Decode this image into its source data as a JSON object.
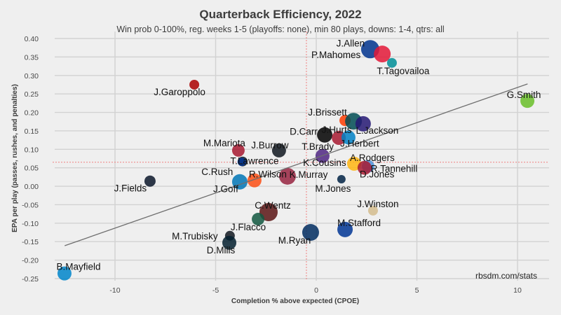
{
  "chart_data": {
    "type": "scatter",
    "title": "Quarterback Efficiency, 2022",
    "subtitle": "Win prob 0-100%, reg. weeks 1-5 (playoffs: none), min 80 plays, downs: 1-4, qtrs: all",
    "xlabel": "Completion % above expected (CPOE)",
    "ylabel": "EPA per play (passes, rushes, and penalties)",
    "caption": "rbsdm.com/stats",
    "xlim": [
      -13.1,
      11.6
    ],
    "ylim": [
      -0.25,
      0.4
    ],
    "x_ticks": [
      -10,
      -5,
      0,
      5,
      10
    ],
    "y_ticks": [
      0.4,
      0.35,
      0.3,
      0.25,
      0.2,
      0.15,
      0.1,
      0.05,
      0.0,
      -0.05,
      -0.1,
      -0.15,
      -0.2,
      -0.25
    ],
    "x_tick_labels": [
      "-10",
      "-5",
      "0",
      "5",
      "10"
    ],
    "y_tick_labels": [
      "0.40",
      "0.35",
      "0.30",
      "0.25",
      "0.20",
      "0.15",
      "0.10",
      "0.05",
      "0.00",
      "-0.05",
      "-0.10",
      "-0.15",
      "-0.20",
      "-0.25"
    ],
    "grid": true,
    "mean_lines": {
      "x": -0.49,
      "y": 0.065,
      "color": "#f08080"
    },
    "trend_line": {
      "x": [
        -12.5,
        10.5
      ],
      "y": [
        -0.161,
        0.277
      ],
      "color": "#6e6e6e"
    },
    "points": [
      {
        "name": "J.Allen",
        "cpoe": 2.68,
        "epa": 0.371,
        "plays": 13,
        "color": "#00338D"
      },
      {
        "name": "P.Mahomes",
        "cpoe": 3.28,
        "epa": 0.358,
        "plays": 12,
        "color": "#E31837"
      },
      {
        "name": "T.Tagovailoa",
        "cpoe": 3.76,
        "epa": 0.334,
        "plays": 7,
        "color": "#008E97"
      },
      {
        "name": "J.Garoppolo",
        "cpoe": -6.06,
        "epa": 0.275,
        "plays": 7,
        "color": "#AA0000"
      },
      {
        "name": "G.Smith",
        "cpoe": 10.49,
        "epa": 0.231,
        "plays": 10,
        "color": "#69BE28"
      },
      {
        "name": "J.Brissett",
        "cpoe": 1.43,
        "epa": 0.178,
        "plays": 8,
        "color": "#FF3C00"
      },
      {
        "name": "J.Hurts",
        "cpoe": 1.85,
        "epa": 0.176,
        "plays": 12,
        "color": "#004C54"
      },
      {
        "name": "L.Jackson",
        "cpoe": 2.33,
        "epa": 0.169,
        "plays": 11,
        "color": "#241773"
      },
      {
        "name": "D.Carr",
        "cpoe": 0.42,
        "epa": 0.139,
        "plays": 11,
        "color": "#000000"
      },
      {
        "name": "T.Brady",
        "cpoe": 1.12,
        "epa": 0.131,
        "plays": 10,
        "color": "#A71930"
      },
      {
        "name": "J.Herbert",
        "cpoe": 1.6,
        "epa": 0.132,
        "plays": 10,
        "color": "#0080C6"
      },
      {
        "name": "J.Burrow",
        "cpoe": -1.85,
        "epa": 0.097,
        "plays": 10,
        "color": "#101820"
      },
      {
        "name": "M.Mariota",
        "cpoe": -3.87,
        "epa": 0.097,
        "plays": 9,
        "color": "#A71930"
      },
      {
        "name": "T.Lawrence",
        "cpoe": -3.66,
        "epa": 0.067,
        "plays": 7,
        "color": "#101820"
      },
      {
        "name": "C.Rush",
        "cpoe": -3.7,
        "epa": 0.066,
        "plays": 6,
        "color": "#003594"
      },
      {
        "name": "K.Cousins",
        "cpoe": 0.31,
        "epa": 0.082,
        "plays": 10,
        "color": "#4F2683"
      },
      {
        "name": "A.Rodgers",
        "cpoe": 1.88,
        "epa": 0.061,
        "plays": 10,
        "color": "#FFB612"
      },
      {
        "name": "R.Tannehill",
        "cpoe": 2.58,
        "epa": 0.054,
        "plays": 9,
        "color": "#4B92DB"
      },
      {
        "name": "D.Jones",
        "cpoe": 2.4,
        "epa": 0.05,
        "plays": 10,
        "color": "#A71930"
      },
      {
        "name": "K.Murray",
        "cpoe": -1.43,
        "epa": 0.027,
        "plays": 12,
        "color": "#97233F"
      },
      {
        "name": "M.Jones",
        "cpoe": 1.25,
        "epa": 0.019,
        "plays": 6,
        "color": "#002244"
      },
      {
        "name": "R.Wilson",
        "cpoe": -3.07,
        "epa": 0.016,
        "plays": 10,
        "color": "#FB4F14"
      },
      {
        "name": "J.Goff",
        "cpoe": -3.8,
        "epa": 0.012,
        "plays": 11,
        "color": "#0076B6"
      },
      {
        "name": "J.Fields",
        "cpoe": -8.26,
        "epa": 0.014,
        "plays": 8,
        "color": "#0B162A"
      },
      {
        "name": "J.Winston",
        "cpoe": 2.82,
        "epa": -0.066,
        "plays": 7,
        "color": "#D3BC8D"
      },
      {
        "name": "C.Wentz",
        "cpoe": -2.37,
        "epa": -0.07,
        "plays": 13,
        "color": "#5A1414"
      },
      {
        "name": "J.Flacco",
        "cpoe": -2.89,
        "epa": -0.089,
        "plays": 9,
        "color": "#125740"
      },
      {
        "name": "M.Stafford",
        "cpoe": 1.43,
        "epa": -0.117,
        "plays": 11,
        "color": "#003594"
      },
      {
        "name": "M.Ryan",
        "cpoe": -0.28,
        "epa": -0.125,
        "plays": 12,
        "color": "#002C5F"
      },
      {
        "name": "M.Trubisky",
        "cpoe": -4.29,
        "epa": -0.134,
        "plays": 7,
        "color": "#101820"
      },
      {
        "name": "D.Mills",
        "cpoe": -4.32,
        "epa": -0.153,
        "plays": 10,
        "color": "#03202F"
      },
      {
        "name": "B.Mayfield",
        "cpoe": -12.51,
        "epa": -0.236,
        "plays": 10,
        "color": "#0085CA"
      }
    ]
  }
}
